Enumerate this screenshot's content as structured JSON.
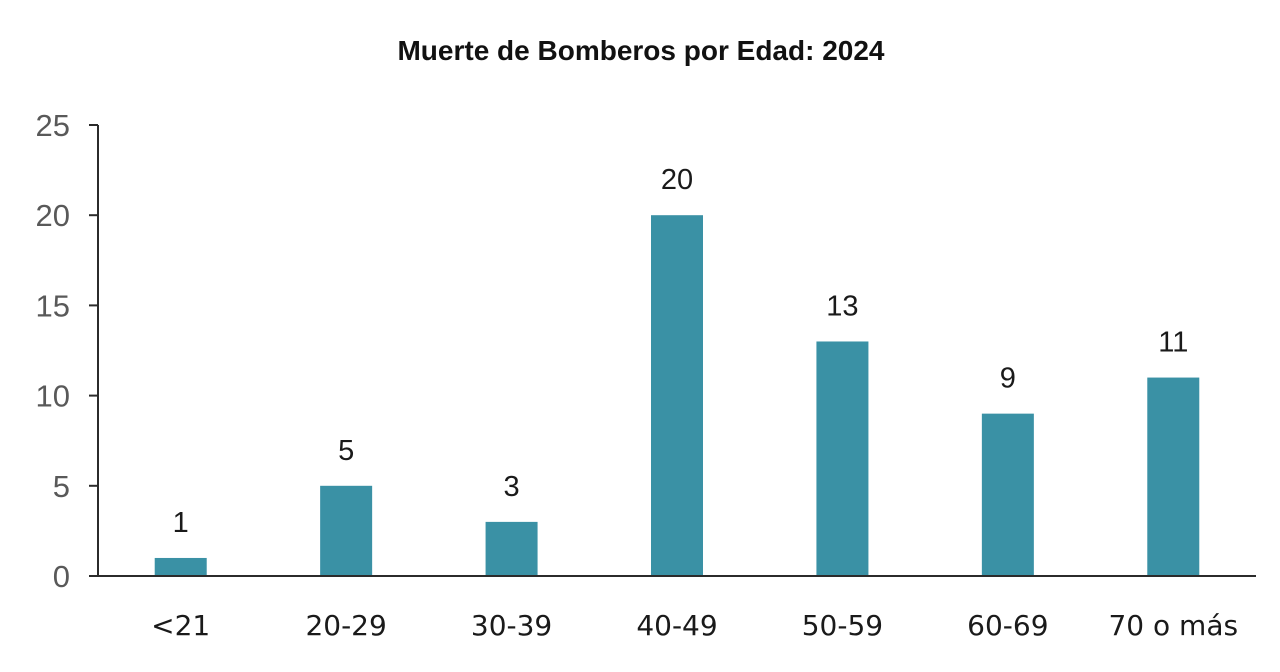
{
  "chart_data": {
    "type": "bar",
    "title": "Muerte de Bomberos por Edad: 2024",
    "xlabel": "",
    "ylabel": "",
    "categories": [
      "<21",
      "20-29",
      "30-39",
      "40-49",
      "50-59",
      "60-69",
      "70 o más"
    ],
    "values": [
      1,
      5,
      3,
      20,
      13,
      9,
      11
    ],
    "ylim": [
      0,
      25
    ],
    "yticks": [
      0,
      5,
      10,
      15,
      20,
      25
    ],
    "data_labels": true,
    "grid": false,
    "legend": "none",
    "colors": {
      "bar": "#3A91A5",
      "axis": "#2B2B2B",
      "y_tick_text": "#595959",
      "text": "#1A1A1A"
    }
  }
}
